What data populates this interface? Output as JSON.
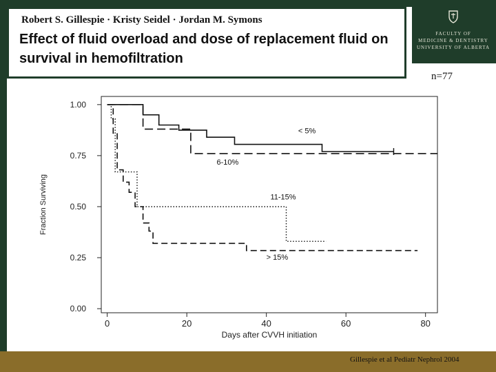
{
  "header": {
    "authors": "Robert S. Gillespie · Kristy Seidel · Jordan M. Symons",
    "title": "Effect of fluid overload and dose of replacement fluid on survival in hemofiltration"
  },
  "logo": {
    "lines": [
      "Faculty of",
      "Medicine & Dentistry",
      "University of Alberta"
    ]
  },
  "sample_size": "n=77",
  "footer": {
    "citation": "Gillespie et al Pediatr Nephrol 2004"
  },
  "colors": {
    "dark_green": "#1f3d2a",
    "gold": "#8a6d2a"
  },
  "chart_data": {
    "type": "line",
    "subtype": "kaplan-meier",
    "xlabel": "Days after CVVH initiation",
    "ylabel": "Fraction Surviving",
    "xlim": [
      -1.5,
      83
    ],
    "ylim": [
      -0.02,
      1.04
    ],
    "xticks": [
      0,
      20,
      40,
      60,
      80
    ],
    "yticks": [
      0.0,
      0.25,
      0.5,
      0.75,
      1.0
    ],
    "ytick_labels": [
      "0.00",
      "0.25",
      "0.50",
      "0.75",
      "1.00"
    ],
    "grid": false,
    "series": [
      {
        "name": "< 5%",
        "style": "solid",
        "points": [
          [
            0,
            1.0
          ],
          [
            9,
            1.0
          ],
          [
            9,
            0.95
          ],
          [
            13,
            0.95
          ],
          [
            13,
            0.9
          ],
          [
            18,
            0.9
          ],
          [
            18,
            0.875
          ],
          [
            25,
            0.875
          ],
          [
            25,
            0.84
          ],
          [
            32,
            0.84
          ],
          [
            32,
            0.805
          ],
          [
            54,
            0.805
          ],
          [
            54,
            0.77
          ],
          [
            72,
            0.77
          ]
        ],
        "censor": [
          72,
          0.77
        ]
      },
      {
        "name": "6-10%",
        "style": "dashed",
        "points": [
          [
            0,
            1.0
          ],
          [
            9,
            1.0
          ],
          [
            9,
            0.88
          ],
          [
            21,
            0.88
          ],
          [
            21,
            0.76
          ],
          [
            83,
            0.76
          ]
        ]
      },
      {
        "name": "11-15%",
        "style": "dotted",
        "points": [
          [
            0,
            1.0
          ],
          [
            1,
            1.0
          ],
          [
            1,
            0.93
          ],
          [
            2,
            0.93
          ],
          [
            2,
            0.67
          ],
          [
            7.5,
            0.67
          ],
          [
            7.5,
            0.5
          ],
          [
            45,
            0.5
          ],
          [
            45,
            0.33
          ],
          [
            55,
            0.33
          ]
        ]
      },
      {
        "name": "> 15%",
        "style": "longdash",
        "points": [
          [
            0,
            1.0
          ],
          [
            1.5,
            1.0
          ],
          [
            1.5,
            0.86
          ],
          [
            2.5,
            0.86
          ],
          [
            2.5,
            0.68
          ],
          [
            4,
            0.68
          ],
          [
            4,
            0.62
          ],
          [
            5.5,
            0.62
          ],
          [
            5.5,
            0.57
          ],
          [
            7,
            0.57
          ],
          [
            7,
            0.5
          ],
          [
            9,
            0.5
          ],
          [
            9,
            0.42
          ],
          [
            10.5,
            0.42
          ],
          [
            10.5,
            0.38
          ],
          [
            11.5,
            0.38
          ],
          [
            11.5,
            0.32
          ],
          [
            35,
            0.32
          ],
          [
            35,
            0.285
          ],
          [
            78,
            0.285
          ]
        ]
      }
    ],
    "annotations": [
      {
        "text": "< 5%",
        "x": 48,
        "y": 0.86
      },
      {
        "text": "6-10%",
        "x": 27.5,
        "y": 0.705
      },
      {
        "text": "11-15%",
        "x": 41,
        "y": 0.535
      },
      {
        "text": "> 15%",
        "x": 40,
        "y": 0.24
      }
    ]
  }
}
